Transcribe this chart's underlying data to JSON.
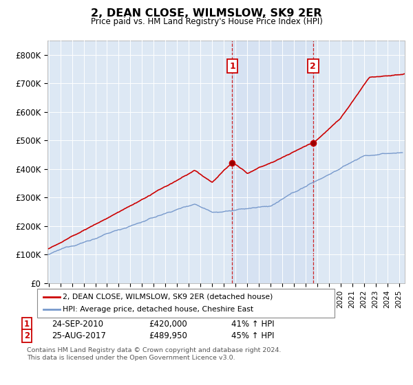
{
  "title": "2, DEAN CLOSE, WILMSLOW, SK9 2ER",
  "subtitle": "Price paid vs. HM Land Registry's House Price Index (HPI)",
  "ylabel_ticks": [
    "£0",
    "£100K",
    "£200K",
    "£300K",
    "£400K",
    "£500K",
    "£600K",
    "£700K",
    "£800K"
  ],
  "ytick_values": [
    0,
    100000,
    200000,
    300000,
    400000,
    500000,
    600000,
    700000,
    800000
  ],
  "ylim": [
    0,
    850000
  ],
  "xlim_start": 1995,
  "xlim_end": 2025,
  "background_color": "#ffffff",
  "plot_bg_color": "#dde8f4",
  "grid_color": "#ffffff",
  "red_line_color": "#cc0000",
  "blue_line_color": "#7799cc",
  "sale1_x": 2010.73,
  "sale1_y": 420000,
  "sale2_x": 2017.65,
  "sale2_y": 489950,
  "sale1_label": "1",
  "sale2_label": "2",
  "legend_line1": "2, DEAN CLOSE, WILMSLOW, SK9 2ER (detached house)",
  "legend_line2": "HPI: Average price, detached house, Cheshire East",
  "annotation1_date": "24-SEP-2010",
  "annotation1_price": "£420,000",
  "annotation1_hpi": "41% ↑ HPI",
  "annotation2_date": "25-AUG-2017",
  "annotation2_price": "£489,950",
  "annotation2_hpi": "45% ↑ HPI",
  "footnote": "Contains HM Land Registry data © Crown copyright and database right 2024.\nThis data is licensed under the Open Government Licence v3.0."
}
